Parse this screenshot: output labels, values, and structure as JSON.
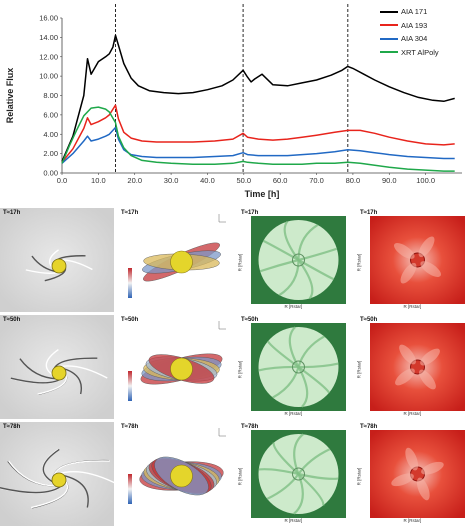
{
  "chart_data": {
    "type": "line",
    "xlabel": "Time [h]",
    "ylabel": "Relative Flux",
    "xlim": [
      0,
      110
    ],
    "ylim": [
      0,
      16
    ],
    "xticks": [
      "0.0",
      "10.0",
      "20.0",
      "30.0",
      "40.0",
      "50.0",
      "60.0",
      "70.0",
      "80.0",
      "90.0",
      "100.0"
    ],
    "yticks": [
      "0.00",
      "2.00",
      "4.00",
      "6.00",
      "8.00",
      "10.00",
      "12.00",
      "14.00",
      "16.00"
    ],
    "vlines": [
      14.7,
      49.8,
      78.6
    ],
    "legend_position": "top-right",
    "series": [
      {
        "name": "AIA 171",
        "color": "#000000",
        "x": [
          0,
          3,
          6,
          7,
          8,
          10,
          12,
          13,
          14,
          14.7,
          15.5,
          17,
          19,
          21,
          24,
          28,
          32,
          36,
          40,
          44,
          47,
          49.8,
          51,
          52,
          53,
          55,
          58,
          62,
          66,
          70,
          74,
          77,
          78.6,
          80,
          83,
          86,
          90,
          94,
          98,
          102,
          105,
          108
        ],
        "y": [
          1.2,
          3.8,
          8.0,
          11.8,
          10.2,
          11.5,
          12.0,
          12.3,
          13.0,
          14.2,
          13.2,
          11.3,
          9.8,
          9.0,
          8.5,
          8.3,
          8.2,
          8.3,
          8.6,
          9.0,
          9.6,
          10.6,
          9.9,
          9.4,
          9.7,
          10.2,
          9.1,
          9.0,
          9.3,
          9.6,
          10.1,
          10.6,
          11.0,
          10.8,
          10.2,
          9.6,
          8.9,
          8.3,
          7.8,
          7.5,
          7.4,
          7.7
        ]
      },
      {
        "name": "AIA 193",
        "color": "#e8241c",
        "x": [
          0,
          3,
          6,
          7,
          8,
          10,
          12,
          13,
          14.7,
          15.5,
          17,
          19,
          22,
          26,
          30,
          36,
          42,
          47,
          49.8,
          51,
          54,
          58,
          62,
          66,
          70,
          75,
          78.6,
          82,
          86,
          90,
          95,
          100,
          105,
          108
        ],
        "y": [
          1.1,
          2.5,
          4.6,
          5.7,
          5.0,
          5.3,
          5.7,
          6.0,
          7.0,
          5.6,
          4.2,
          3.6,
          3.3,
          3.2,
          3.2,
          3.2,
          3.3,
          3.5,
          4.1,
          3.7,
          3.5,
          3.4,
          3.5,
          3.7,
          3.9,
          4.2,
          4.4,
          4.4,
          4.1,
          3.7,
          3.3,
          3.0,
          2.9,
          3.0
        ]
      },
      {
        "name": "AIA 304",
        "color": "#2169c4",
        "x": [
          0,
          3,
          6,
          7,
          8,
          10,
          12,
          13,
          14.7,
          15.5,
          17,
          19,
          22,
          26,
          30,
          36,
          42,
          47,
          49.8,
          51,
          54,
          58,
          62,
          66,
          70,
          75,
          78.6,
          82,
          86,
          90,
          95,
          100,
          105,
          108
        ],
        "y": [
          1.0,
          2.0,
          3.3,
          3.8,
          3.3,
          3.5,
          3.8,
          4.0,
          4.7,
          3.5,
          2.4,
          1.9,
          1.7,
          1.6,
          1.6,
          1.6,
          1.7,
          1.8,
          2.1,
          1.9,
          1.8,
          1.8,
          1.8,
          1.9,
          2.0,
          2.2,
          2.4,
          2.3,
          2.1,
          1.9,
          1.7,
          1.6,
          1.5,
          1.5
        ]
      },
      {
        "name": "XRT AlPoly",
        "color": "#1fa84a",
        "x": [
          0,
          2,
          4,
          6,
          8,
          10,
          12,
          13,
          14.7,
          15.5,
          17,
          19,
          22,
          26,
          30,
          36,
          42,
          47,
          49.8,
          51,
          54,
          58,
          62,
          66,
          70,
          75,
          78.6,
          82,
          86,
          90,
          95,
          100,
          105,
          108
        ],
        "y": [
          1.0,
          2.8,
          4.4,
          5.9,
          6.7,
          6.8,
          6.6,
          6.3,
          5.2,
          3.8,
          2.6,
          1.8,
          1.3,
          1.1,
          1.0,
          0.9,
          0.9,
          1.0,
          1.2,
          1.1,
          1.0,
          0.9,
          0.9,
          0.9,
          1.0,
          1.0,
          1.1,
          1.0,
          0.8,
          0.6,
          0.4,
          0.3,
          0.2,
          0.2
        ]
      }
    ]
  },
  "panels": {
    "rows": [
      {
        "time": "T≈17h"
      },
      {
        "time": "T≈50h"
      },
      {
        "time": "T≈78h"
      }
    ],
    "axis_label_r": "R [Rstar]"
  }
}
